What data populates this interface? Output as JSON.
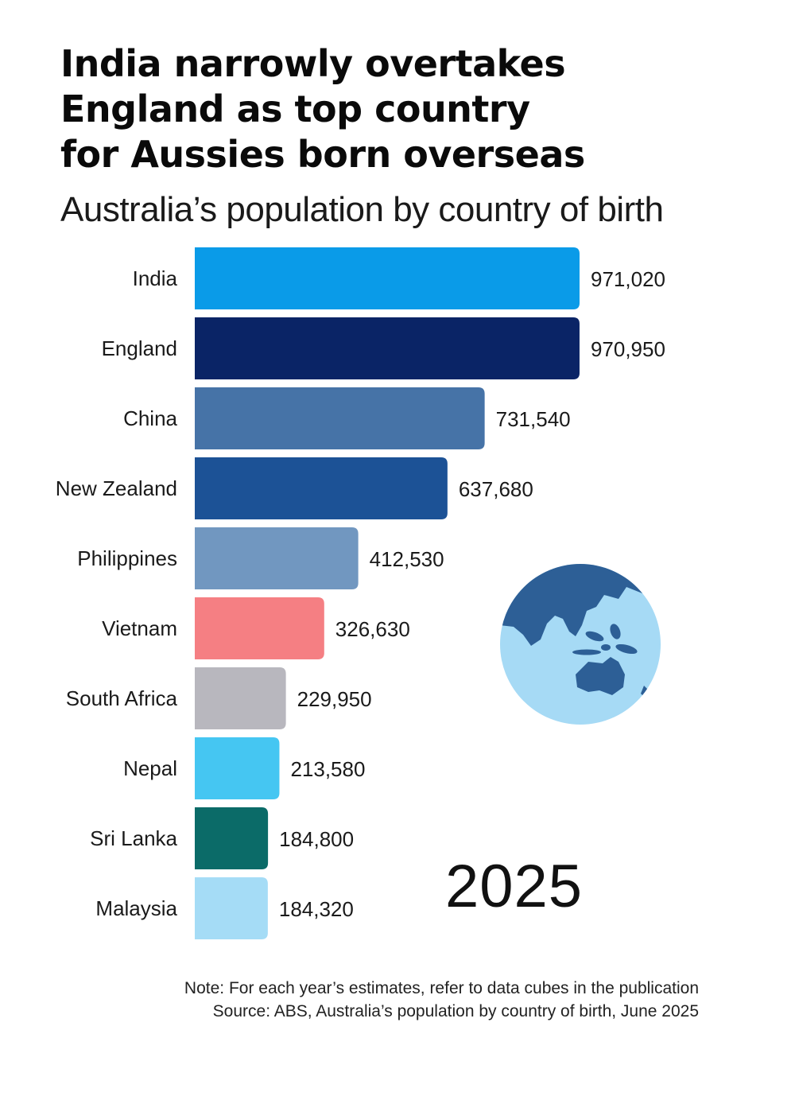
{
  "title_lines": [
    "India narrowly overtakes",
    "England as top country",
    "for Aussies born overseas"
  ],
  "subtitle": "Australia’s population by country of birth",
  "year": "2025",
  "note": "Note: For each year’s estimates, refer to data cubes in the publication",
  "source": "Source: ABS, Australia’s population by country of birth, June 2025",
  "globe_icon": "globe-icon",
  "chart_data": {
    "type": "bar",
    "orientation": "horizontal",
    "categories": [
      "India",
      "England",
      "China",
      "New Zealand",
      "Philippines",
      "Vietnam",
      "South Africa",
      "Nepal",
      "Sri Lanka",
      "Malaysia"
    ],
    "values": [
      971020,
      970950,
      731540,
      637680,
      412530,
      326630,
      229950,
      213580,
      184800,
      184320
    ],
    "value_labels": [
      "971,020",
      "970,950",
      "731,540",
      "637,680",
      "412,530",
      "326,630",
      "229,950",
      "213,580",
      "184,800",
      "184,320"
    ],
    "colors": [
      "#0a9be8",
      "#0a2466",
      "#4673a7",
      "#1c5296",
      "#7197c0",
      "#f57f83",
      "#b8b7be",
      "#45c6f2",
      "#0b6b68",
      "#a5dcf6"
    ],
    "xlim": [
      0,
      971020
    ],
    "grid": false,
    "legend": "none"
  }
}
